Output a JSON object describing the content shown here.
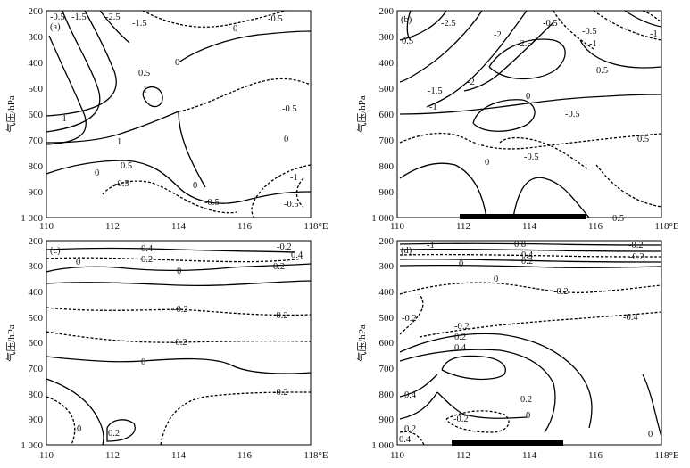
{
  "figure": {
    "ylabel": "气压/hPa",
    "y_ticks": [
      "200",
      "300",
      "400",
      "500",
      "600",
      "700",
      "800",
      "900",
      "1 000"
    ],
    "x_ticks": [
      "110",
      "112",
      "114",
      "116",
      "118°E"
    ],
    "panels": [
      {
        "label": "(a)",
        "contour_labels": [
          "-0.5",
          "-1.5",
          "-2.5",
          "-1.5",
          "-0.5",
          "0",
          "0",
          "0.5",
          "1",
          "-1",
          "1",
          "0",
          "-0.5",
          "0",
          "0.5",
          "0",
          "-0.5",
          "-0.5",
          "-1",
          "-0.5"
        ]
      },
      {
        "label": "(b)",
        "contour_labels": [
          "-2.5",
          "-2",
          "-2.5",
          "-0.5",
          "-0.5",
          "-1",
          "0.5",
          "-2",
          "-1.5",
          "0",
          "-0.5",
          "-1",
          "0.5",
          "-0.5",
          "0.5",
          "0",
          "0.5",
          "-1"
        ]
      },
      {
        "label": "(c)",
        "contour_labels": [
          "0.4",
          "0.2",
          "-0.2",
          "0.4",
          "0.2",
          "0",
          "0",
          "-0.2",
          "-0.2",
          "-0.2",
          "0",
          "-0.2",
          "0",
          "0.2"
        ]
      },
      {
        "label": "(d)",
        "contour_labels": [
          "-1",
          "0.8",
          "0.4",
          "-0.2",
          "0.2",
          "0",
          "-0.2",
          "0",
          "-0.2",
          "-0.2",
          "-0.4",
          "-0.2",
          "0.2",
          "0.4",
          "0.2",
          "0",
          "-0.2",
          "0.4",
          "0.2",
          "0.4",
          "0"
        ]
      }
    ]
  }
}
